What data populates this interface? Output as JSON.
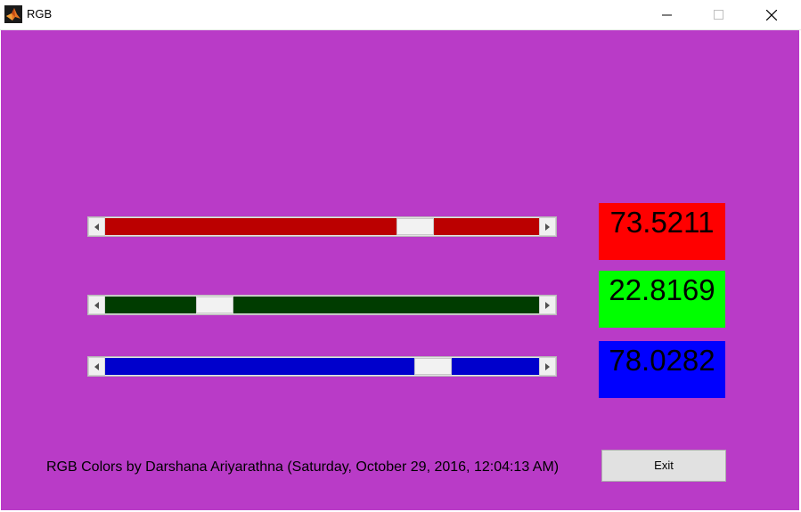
{
  "window": {
    "title": "RGB",
    "icon": "matlab-logo-icon",
    "controls": [
      "minimize-icon",
      "maximize-icon",
      "close-icon"
    ],
    "background": "#b93bc7"
  },
  "sliders": [
    {
      "name": "red",
      "value": 73.5211,
      "max": 100,
      "track_color": "#bb0000"
    },
    {
      "name": "green",
      "value": 22.8169,
      "max": 100,
      "track_color": "#003c00"
    },
    {
      "name": "blue",
      "value": 78.0282,
      "max": 100,
      "track_color": "#0000cc"
    }
  ],
  "values": {
    "red": {
      "text": "73.5211",
      "color": "#ff0000"
    },
    "green": {
      "text": "22.8169",
      "color": "#00ff00"
    },
    "blue": {
      "text": "78.0282",
      "color": "#0000ff"
    }
  },
  "footer": {
    "credits": "RGB Colors by Darshana Ariyarathna (Saturday, October 29, 2016, 12:04:13 AM)",
    "exit_label": "Exit"
  }
}
